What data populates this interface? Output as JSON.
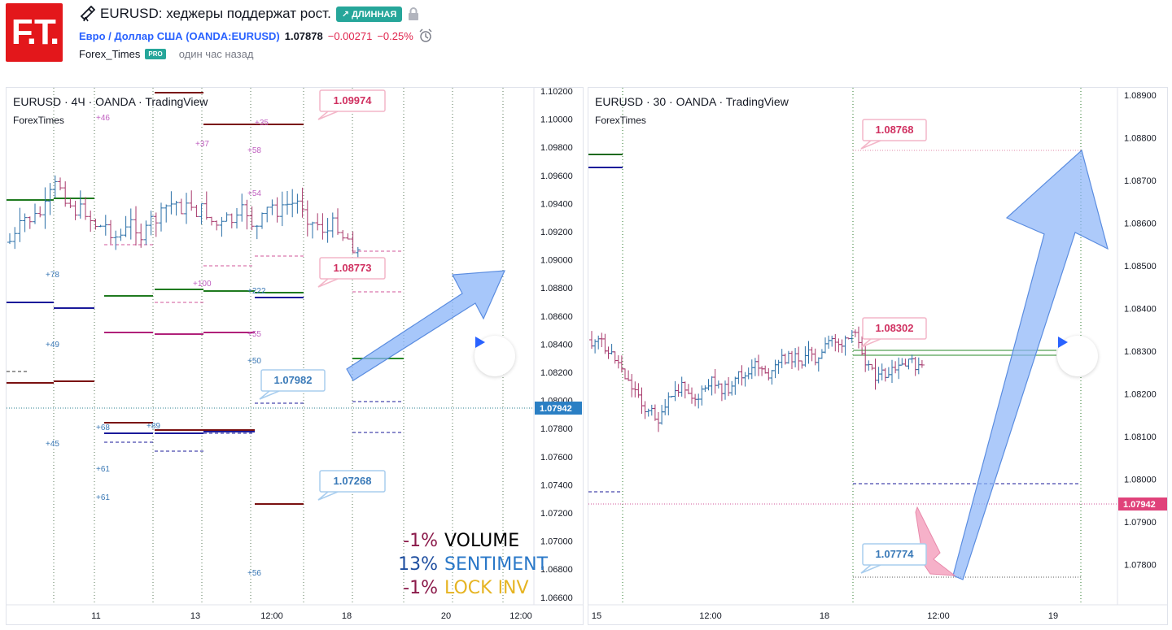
{
  "header": {
    "logo_text": "F.T.",
    "idea_title": "EURUSD: хеджеры поддержат рост.",
    "direction_badge": "ДЛИННАЯ",
    "symbol_name": "Евро / Доллар США",
    "symbol_code": "(OANDA:EURUSD)",
    "price": "1.07878",
    "change_abs": "−0.00271",
    "change_pct": "−0.25%",
    "author": "Forex_Times",
    "author_badge": "PRO",
    "published": "один час назад"
  },
  "colors": {
    "brand_red": "#e3171b",
    "long_green": "#26a69a",
    "link_blue": "#2962ff",
    "negative": "#e0254d",
    "candle_up": "#2a6fa8",
    "candle_down": "#a8386b",
    "arrow_blue": "#8ab4f8",
    "arrow_pink": "#f5a3bf"
  },
  "left_chart": {
    "legend": "EURUSD · 4Ч · OANDA · TradingView",
    "sublegend": "ForexTimes",
    "price_axis": [
      "1.10200",
      "1.10000",
      "1.09800",
      "1.09600",
      "1.09400",
      "1.09200",
      "1.09000",
      "1.08800",
      "1.08600",
      "1.08400",
      "1.08200",
      "1.08000",
      "1.07800",
      "1.07600",
      "1.07400",
      "1.07200",
      "1.07000",
      "1.06800",
      "1.06600"
    ],
    "time_axis": [
      "11",
      "13",
      "12:00",
      "18",
      "20",
      "12:00"
    ],
    "current_price": "1.07942",
    "price_labels": [
      "1.09974",
      "1.08773",
      "1.07982",
      "1.07268"
    ],
    "small_labels": [
      "+46",
      "+37",
      "+35",
      "+58",
      "+54",
      "+78",
      "+100",
      "+222",
      "+49",
      "+55",
      "+50",
      "+68",
      "+89",
      "+45",
      "+61",
      "+61",
      "+56"
    ],
    "stats": [
      {
        "value": "-1%",
        "label": "VOLUME",
        "value_color": "#8b1a4a",
        "label_color": "#000000"
      },
      {
        "value": "13%",
        "label": "SENTIMENT",
        "value_color": "#1f4fa0",
        "label_color": "#2a78c8"
      },
      {
        "value": "-1%",
        "label": "LOCK INV",
        "value_color": "#8b1a4a",
        "label_color": "#e6b422"
      }
    ]
  },
  "right_chart": {
    "legend": "EURUSD · 30 · OANDA · TradingView",
    "sublegend": "ForexTimes",
    "price_axis": [
      "1.08900",
      "1.08800",
      "1.08700",
      "1.08600",
      "1.08500",
      "1.08400",
      "1.08300",
      "1.08200",
      "1.08100",
      "1.08000",
      "1.07900",
      "1.07800"
    ],
    "time_axis": [
      "15",
      "12:00",
      "18",
      "12:00",
      "19"
    ],
    "current_price": "1.07942",
    "price_labels": [
      "1.08768",
      "1.08302",
      "1.07774"
    ]
  }
}
